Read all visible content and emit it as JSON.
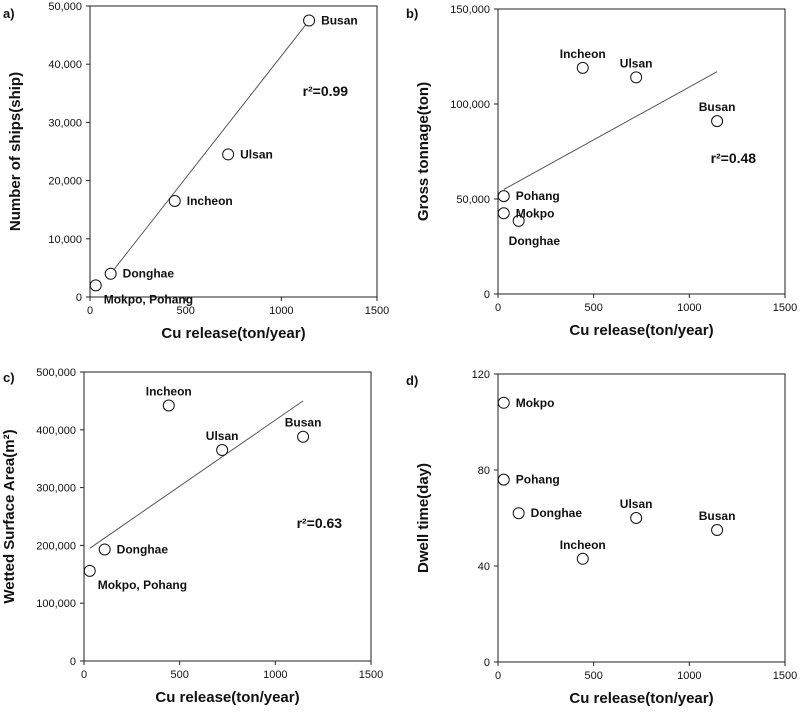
{
  "chart_data": [
    {
      "type": "scatter",
      "panel_label": "a)",
      "xlabel": "Cu release(ton/year)",
      "ylabel": "Number of ships(ship)",
      "xlim": [
        0,
        1500
      ],
      "ylim": [
        0,
        50000
      ],
      "x_ticks": [
        0,
        500,
        1000,
        1500
      ],
      "y_ticks": [
        0,
        10000,
        20000,
        30000,
        40000,
        50000
      ],
      "y_tick_labels": [
        "0",
        "10,000",
        "20,000",
        "30,000",
        "40,000",
        "50,000"
      ],
      "points": [
        {
          "name": "Busan",
          "x": 1145,
          "y": 47500
        },
        {
          "name": "Ulsan",
          "x": 722,
          "y": 24500
        },
        {
          "name": "Incheon",
          "x": 443,
          "y": 16500
        },
        {
          "name": "Donghae",
          "x": 108,
          "y": 4000
        },
        {
          "name": "Mokpo",
          "x": 30,
          "y": 2000
        },
        {
          "name": "Pohang",
          "x": 30,
          "y": 2000
        }
      ],
      "labels": [
        {
          "text": "Busan",
          "x": 1145,
          "y": 47500,
          "pos": "right"
        },
        {
          "text": "Ulsan",
          "x": 722,
          "y": 24500,
          "pos": "right"
        },
        {
          "text": "Incheon",
          "x": 443,
          "y": 16500,
          "pos": "right"
        },
        {
          "text": "Donghae",
          "x": 108,
          "y": 4000,
          "pos": "right"
        },
        {
          "text": "Mokpo, Pohang",
          "x": 30,
          "y": 2000,
          "pos": "below-right"
        }
      ],
      "fit": {
        "x1": 108,
        "y1": 4000,
        "x2": 1145,
        "y2": 47500
      },
      "r2_text": "r²=0.99",
      "r2_at": {
        "x": 1230,
        "y": 34500
      }
    },
    {
      "type": "scatter",
      "panel_label": "b)",
      "xlabel": "Cu release(ton/year)",
      "ylabel": "Gross tonnage(ton)",
      "xlim": [
        0,
        1500
      ],
      "ylim": [
        0,
        150000
      ],
      "x_ticks": [
        0,
        500,
        1000,
        1500
      ],
      "y_ticks": [
        0,
        50000,
        100000,
        150000
      ],
      "y_tick_labels": [
        "0",
        "50,000",
        "100,000",
        "150,000"
      ],
      "points": [
        {
          "name": "Incheon",
          "x": 443,
          "y": 119000
        },
        {
          "name": "Ulsan",
          "x": 722,
          "y": 114000
        },
        {
          "name": "Busan",
          "x": 1145,
          "y": 91000
        },
        {
          "name": "Pohang",
          "x": 30,
          "y": 51500
        },
        {
          "name": "Mokpo",
          "x": 30,
          "y": 42500
        },
        {
          "name": "Donghae",
          "x": 108,
          "y": 38500
        }
      ],
      "labels": [
        {
          "text": "Incheon",
          "x": 443,
          "y": 119000,
          "pos": "above"
        },
        {
          "text": "Ulsan",
          "x": 722,
          "y": 114000,
          "pos": "above"
        },
        {
          "text": "Busan",
          "x": 1145,
          "y": 91000,
          "pos": "above"
        },
        {
          "text": "Pohang",
          "x": 30,
          "y": 51500,
          "pos": "right"
        },
        {
          "text": "Mokpo",
          "x": 30,
          "y": 42500,
          "pos": "right"
        },
        {
          "text": "Donghae",
          "x": 108,
          "y": 38500,
          "pos": "below"
        }
      ],
      "fit": {
        "x1": 30,
        "y1": 55000,
        "x2": 1145,
        "y2": 117000
      },
      "r2_text": "r²=0.48",
      "r2_at": {
        "x": 1230,
        "y": 69000
      }
    },
    {
      "type": "scatter",
      "panel_label": "c)",
      "xlabel": "Cu release(ton/year)",
      "ylabel": "Wetted Surface Area(m²)",
      "xlim": [
        0,
        1500
      ],
      "ylim": [
        0,
        500000
      ],
      "x_ticks": [
        0,
        500,
        1000,
        1500
      ],
      "y_ticks": [
        0,
        100000,
        200000,
        300000,
        400000,
        500000
      ],
      "y_tick_labels": [
        "0",
        "100,000",
        "200,000",
        "300,000",
        "400,000",
        "500,000"
      ],
      "points": [
        {
          "name": "Incheon",
          "x": 443,
          "y": 442000
        },
        {
          "name": "Busan",
          "x": 1145,
          "y": 388000
        },
        {
          "name": "Ulsan",
          "x": 722,
          "y": 365000
        },
        {
          "name": "Donghae",
          "x": 108,
          "y": 193000
        },
        {
          "name": "Mokpo",
          "x": 30,
          "y": 156000
        },
        {
          "name": "Pohang",
          "x": 30,
          "y": 156000
        }
      ],
      "labels": [
        {
          "text": "Incheon",
          "x": 443,
          "y": 442000,
          "pos": "above"
        },
        {
          "text": "Busan",
          "x": 1145,
          "y": 388000,
          "pos": "above"
        },
        {
          "text": "Ulsan",
          "x": 722,
          "y": 365000,
          "pos": "above"
        },
        {
          "text": "Donghae",
          "x": 108,
          "y": 193000,
          "pos": "right"
        },
        {
          "text": "Mokpo, Pohang",
          "x": 30,
          "y": 156000,
          "pos": "below-right"
        }
      ],
      "fit": {
        "x1": 30,
        "y1": 195000,
        "x2": 1145,
        "y2": 450000
      },
      "r2_text": "r²=0.63",
      "r2_at": {
        "x": 1230,
        "y": 230000
      }
    },
    {
      "type": "scatter",
      "panel_label": "d)",
      "xlabel": "Cu release(ton/year)",
      "ylabel": "Dwell time(day)",
      "xlim": [
        0,
        1500
      ],
      "ylim": [
        0,
        120
      ],
      "x_ticks": [
        0,
        500,
        1000,
        1500
      ],
      "y_ticks": [
        0,
        40,
        80,
        120
      ],
      "y_tick_labels": [
        "0",
        "40",
        "80",
        "120"
      ],
      "points": [
        {
          "name": "Mokpo",
          "x": 30,
          "y": 108
        },
        {
          "name": "Pohang",
          "x": 30,
          "y": 76
        },
        {
          "name": "Donghae",
          "x": 108,
          "y": 62
        },
        {
          "name": "Ulsan",
          "x": 722,
          "y": 60
        },
        {
          "name": "Busan",
          "x": 1145,
          "y": 55
        },
        {
          "name": "Incheon",
          "x": 443,
          "y": 43
        }
      ],
      "labels": [
        {
          "text": "Mokpo",
          "x": 30,
          "y": 108,
          "pos": "right"
        },
        {
          "text": "Pohang",
          "x": 30,
          "y": 76,
          "pos": "right"
        },
        {
          "text": "Donghae",
          "x": 108,
          "y": 62,
          "pos": "right"
        },
        {
          "text": "Ulsan",
          "x": 722,
          "y": 60,
          "pos": "above"
        },
        {
          "text": "Busan",
          "x": 1145,
          "y": 55,
          "pos": "above"
        },
        {
          "text": "Incheon",
          "x": 443,
          "y": 43,
          "pos": "above"
        }
      ]
    }
  ]
}
